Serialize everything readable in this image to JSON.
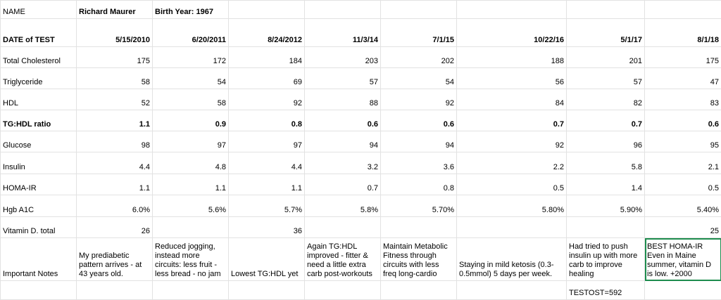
{
  "table": {
    "rows": [
      [
        "NAME",
        "Richard Maurer",
        "Birth Year: 1967",
        null,
        null,
        null,
        null,
        null,
        null
      ],
      [
        "DATE of TEST",
        "5/15/2010",
        "6/20/2011",
        "8/24/2012",
        "11/3/14",
        "7/1/15",
        "10/22/16",
        "5/1/17",
        "8/1/18"
      ],
      [
        "Total Cholesterol",
        "175",
        "172",
        "184",
        "203",
        "202",
        "188",
        "201",
        "175"
      ],
      [
        "Triglyceride",
        "58",
        "54",
        "69",
        "57",
        "54",
        "56",
        "57",
        "47"
      ],
      [
        "HDL",
        "52",
        "58",
        "92",
        "88",
        "92",
        "84",
        "82",
        "83"
      ],
      [
        "TG:HDL ratio",
        "1.1",
        "0.9",
        "0.8",
        "0.6",
        "0.6",
        "0.7",
        "0.7",
        "0.6"
      ],
      [
        "Glucose",
        "98",
        "97",
        "97",
        "94",
        "94",
        "92",
        "96",
        "95"
      ],
      [
        "Insulin",
        "4.4",
        "4.8",
        "4.4",
        "3.2",
        "3.6",
        "2.2",
        "5.8",
        "2.1"
      ],
      [
        "HOMA-IR",
        "1.1",
        "1.1",
        "1.1",
        "0.7",
        "0.8",
        "0.5",
        "1.4",
        "0.5"
      ],
      [
        "Hgb A1C",
        "6.0%",
        "5.6%",
        "5.7%",
        "5.8%",
        "5.70%",
        "5.80%",
        "5.90%",
        "5.40%"
      ],
      [
        "Vitamin D. total",
        "26",
        null,
        "36",
        null,
        null,
        null,
        null,
        "25"
      ],
      [
        "Important Notes",
        "My prediabetic pattern arrives - at 43 years old.",
        "Reduced jogging, instead more circuits: less fruit - less bread - no jam",
        "Lowest TG:HDL yet",
        "Again TG:HDL improved - fitter & need a little extra carb post-workouts",
        "Maintain Metabolic Fitness through circuits with less freq long-cardio",
        "Staying in mild ketosis (0.3-0.5mmol) 5 days per week.",
        "Had tried to push insulin up with more carb to improve healing",
        "BEST HOMA-IR Even in Maine summer, vitamin D is low. +2000"
      ],
      [
        null,
        null,
        null,
        null,
        null,
        null,
        null,
        "TESTOST=592",
        null
      ]
    ]
  }
}
